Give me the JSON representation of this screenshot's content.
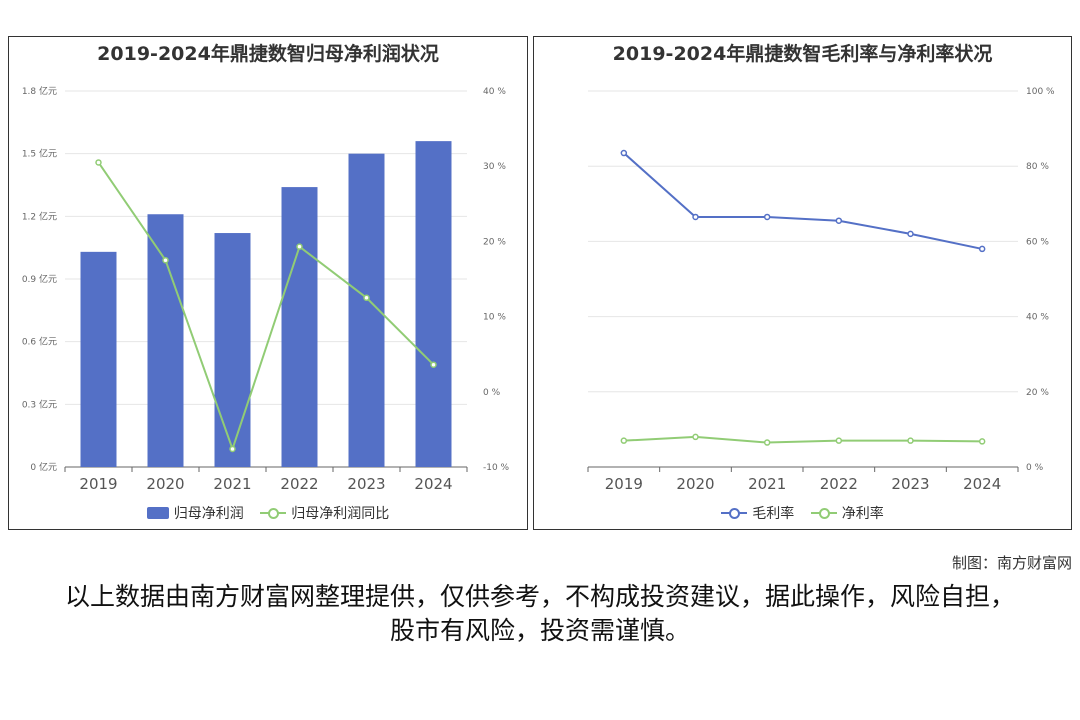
{
  "colors": {
    "bar": "#5470c6",
    "line_green": "#91cc75",
    "line_blue": "#5470c6",
    "grid": "#e6e6e6",
    "axis_text": "#666666"
  },
  "credit": "制图：南方财富网",
  "disclaimer": "以上数据由南方财富网整理提供，仅供参考，不构成投资建议，据此操作，风险自担，股市有风险，投资需谨慎。",
  "chart_data": [
    {
      "type": "bar",
      "title": "2019-2024年鼎捷数智归母净利润状况",
      "categories": [
        "2019",
        "2020",
        "2021",
        "2022",
        "2023",
        "2024"
      ],
      "y_left": {
        "ticks": [
          "0 亿元",
          "0.3 亿元",
          "0.6 亿元",
          "0.9 亿元",
          "1.2 亿元",
          "1.5 亿元",
          "1.8 亿元"
        ],
        "range": [
          0,
          1.8
        ]
      },
      "y_right": {
        "ticks": [
          "-10 %",
          "0 %",
          "10 %",
          "20 %",
          "30 %",
          "40 %"
        ],
        "range": [
          -10,
          40
        ]
      },
      "series": [
        {
          "name": "归母净利润",
          "type": "bar",
          "axis": "left",
          "values": [
            1.03,
            1.21,
            1.12,
            1.34,
            1.5,
            1.56
          ]
        },
        {
          "name": "归母净利润同比",
          "type": "line",
          "axis": "right",
          "values": [
            30.5,
            17.5,
            -7.6,
            19.3,
            12.5,
            3.6
          ]
        }
      ]
    },
    {
      "type": "line",
      "title": "2019-2024年鼎捷数智毛利率与净利率状况",
      "categories": [
        "2019",
        "2020",
        "2021",
        "2022",
        "2023",
        "2024"
      ],
      "y_right": {
        "ticks": [
          "0 %",
          "20 %",
          "40 %",
          "60 %",
          "80 %",
          "100 %"
        ],
        "range": [
          0,
          100
        ]
      },
      "series": [
        {
          "name": "毛利率",
          "values": [
            83.5,
            66.5,
            66.5,
            65.5,
            62.0,
            58.0
          ]
        },
        {
          "name": "净利率",
          "values": [
            7.0,
            8.0,
            6.5,
            7.0,
            7.0,
            6.8
          ]
        }
      ]
    }
  ]
}
